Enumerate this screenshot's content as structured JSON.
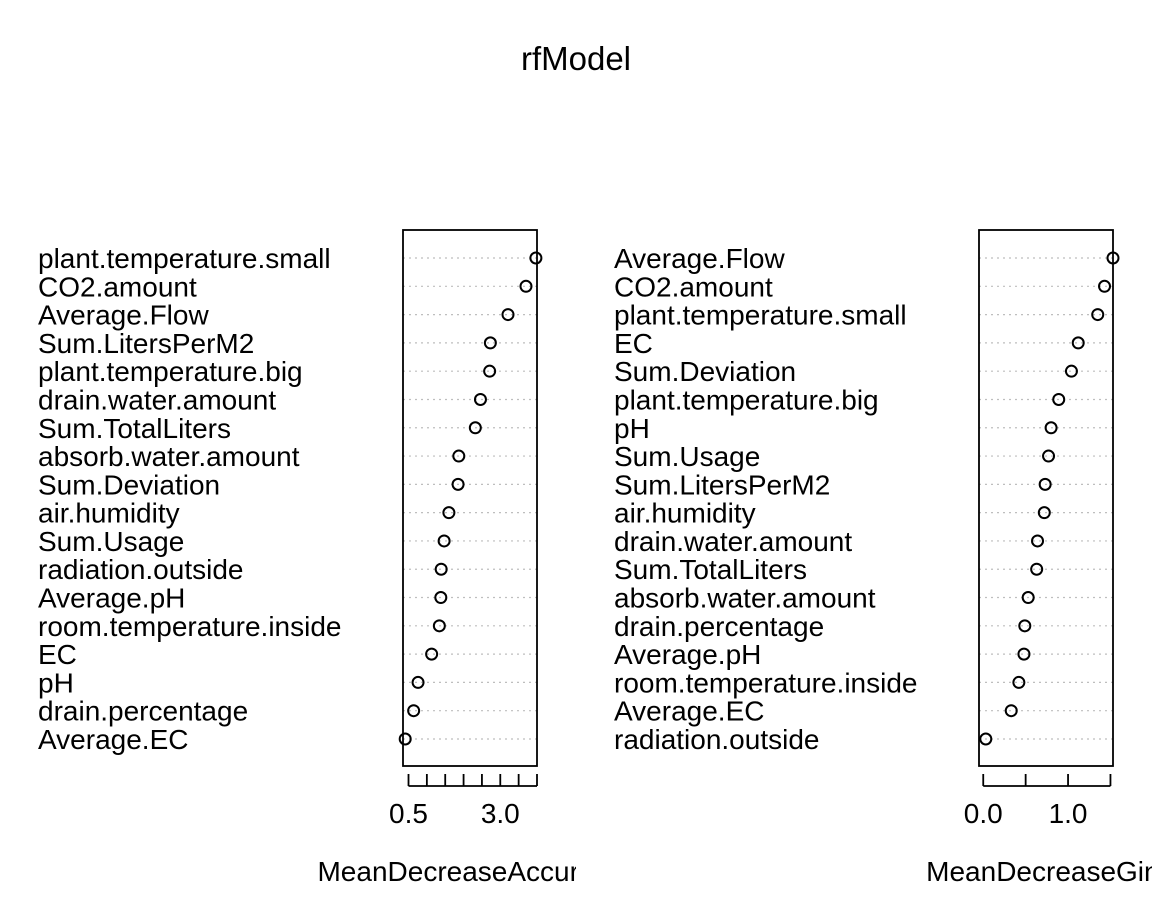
{
  "title": "rfModel",
  "chart_data": [
    {
      "type": "dotchart",
      "xlabel": "MeanDecreaseAccuracy",
      "xlim": [
        0.35,
        4.0
      ],
      "ticks": [
        0.5,
        1.0,
        1.5,
        2.0,
        2.5,
        3.0,
        3.5,
        4.0
      ],
      "tick_labels": [
        {
          "value": 0.5,
          "label": "0.5"
        },
        {
          "value": 3.0,
          "label": "3.0"
        }
      ],
      "grid": "dotted",
      "labels": [
        "plant.temperature.small",
        "CO2.amount",
        "Average.Flow",
        "Sum.LitersPerM2",
        "plant.temperature.big",
        "drain.water.amount",
        "Sum.TotalLiters",
        "absorb.water.amount",
        "Sum.Deviation",
        "air.humidity",
        "Sum.Usage",
        "radiation.outside",
        "Average.pH",
        "room.temperature.inside",
        "EC",
        "pH",
        "drain.percentage",
        "Average.EC"
      ],
      "values": [
        3.97,
        3.7,
        3.21,
        2.73,
        2.71,
        2.46,
        2.32,
        1.87,
        1.85,
        1.6,
        1.47,
        1.39,
        1.38,
        1.34,
        1.13,
        0.76,
        0.64,
        0.41
      ]
    },
    {
      "type": "dotchart",
      "xlabel": "MeanDecreaseGini",
      "xlim": [
        -0.05,
        1.53
      ],
      "ticks": [
        0.0,
        0.5,
        1.0,
        1.5
      ],
      "tick_labels": [
        {
          "value": 0.0,
          "label": "0.0"
        },
        {
          "value": 1.0,
          "label": "1.0"
        }
      ],
      "grid": "dotted",
      "labels": [
        "Average.Flow",
        "CO2.amount",
        "plant.temperature.small",
        "EC",
        "Sum.Deviation",
        "plant.temperature.big",
        "pH",
        "Sum.Usage",
        "Sum.LitersPerM2",
        "air.humidity",
        "drain.water.amount",
        "Sum.TotalLiters",
        "absorb.water.amount",
        "drain.percentage",
        "Average.pH",
        "room.temperature.inside",
        "Average.EC",
        "radiation.outside"
      ],
      "values": [
        1.53,
        1.43,
        1.35,
        1.12,
        1.04,
        0.89,
        0.8,
        0.77,
        0.73,
        0.72,
        0.64,
        0.63,
        0.53,
        0.49,
        0.48,
        0.42,
        0.33,
        0.03
      ]
    }
  ]
}
